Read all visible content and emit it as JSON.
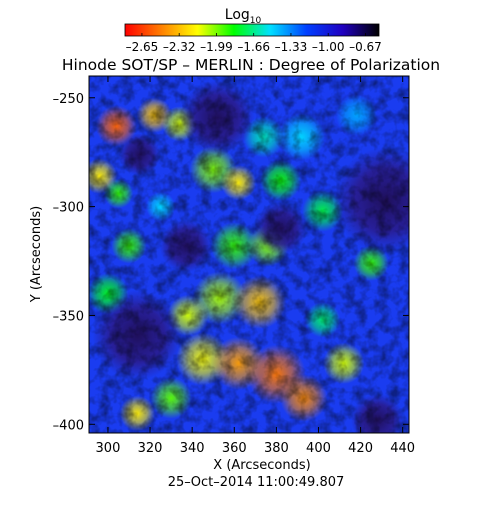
{
  "chart_data": {
    "type": "heatmap",
    "title": "Hinode SOT/SP – MERLIN : Degree of Polarization",
    "xlabel": "X (Arcseconds)",
    "ylabel": "Y (Arcseconds)",
    "footer": "25–Oct–2014 11:00:49.807",
    "xlim": [
      291,
      443
    ],
    "ylim": [
      -404,
      -240
    ],
    "x_ticks": [
      300,
      320,
      340,
      360,
      380,
      400,
      420,
      440
    ],
    "x_tick_labels": [
      "300",
      "320",
      "340",
      "360",
      "380",
      "400",
      "420",
      "440"
    ],
    "y_ticks": [
      -250,
      -300,
      -350,
      -400
    ],
    "y_tick_labels": [
      "–250",
      "–300",
      "–350",
      "–400"
    ],
    "grid": false,
    "colorbar": {
      "title_main": "Log",
      "title_sub": "10",
      "range": [
        -2.8,
        -0.55
      ],
      "ticks": [
        -2.65,
        -2.32,
        -1.99,
        -1.66,
        -1.33,
        -1.0,
        -0.67
      ],
      "tick_labels": [
        "–2.65",
        "–2.32",
        "–1.99",
        "–1.66",
        "–1.33",
        "–1.00",
        "–0.67"
      ],
      "colormap": [
        "#ff0000",
        "#ff7f00",
        "#ffff00",
        "#00ff00",
        "#00e0ff",
        "#0040ff",
        "#2000c0",
        "#000000"
      ]
    },
    "blobs": [
      {
        "x": 304,
        "y": -263,
        "r": 7,
        "v": -2.55
      },
      {
        "x": 322,
        "y": -258,
        "r": 6,
        "v": -2.3
      },
      {
        "x": 334,
        "y": -262,
        "r": 6,
        "v": -2.1
      },
      {
        "x": 350,
        "y": -283,
        "r": 8,
        "v": -2.0
      },
      {
        "x": 362,
        "y": -289,
        "r": 6,
        "v": -2.2
      },
      {
        "x": 374,
        "y": -268,
        "r": 7,
        "v": -1.6
      },
      {
        "x": 392,
        "y": -268,
        "r": 8,
        "v": -1.5
      },
      {
        "x": 382,
        "y": -288,
        "r": 7,
        "v": -1.85
      },
      {
        "x": 402,
        "y": -302,
        "r": 7,
        "v": -1.75
      },
      {
        "x": 360,
        "y": -318,
        "r": 8,
        "v": -1.9
      },
      {
        "x": 376,
        "y": -318,
        "r": 7,
        "v": -2.0
      },
      {
        "x": 310,
        "y": -318,
        "r": 6,
        "v": -1.9
      },
      {
        "x": 296,
        "y": -286,
        "r": 6,
        "v": -2.2
      },
      {
        "x": 353,
        "y": -342,
        "r": 9,
        "v": -2.05
      },
      {
        "x": 372,
        "y": -344,
        "r": 9,
        "v": -2.3
      },
      {
        "x": 338,
        "y": -350,
        "r": 7,
        "v": -2.1
      },
      {
        "x": 345,
        "y": -370,
        "r": 9,
        "v": -2.15
      },
      {
        "x": 362,
        "y": -372,
        "r": 9,
        "v": -2.4
      },
      {
        "x": 380,
        "y": -377,
        "r": 10,
        "v": -2.5
      },
      {
        "x": 393,
        "y": -388,
        "r": 8,
        "v": -2.45
      },
      {
        "x": 412,
        "y": -372,
        "r": 7,
        "v": -2.1
      },
      {
        "x": 330,
        "y": -388,
        "r": 7,
        "v": -1.95
      },
      {
        "x": 314,
        "y": -395,
        "r": 6,
        "v": -2.2
      },
      {
        "x": 402,
        "y": -352,
        "r": 6,
        "v": -1.7
      },
      {
        "x": 425,
        "y": -326,
        "r": 6,
        "v": -1.9
      },
      {
        "x": 418,
        "y": -258,
        "r": 7,
        "v": -1.4
      },
      {
        "x": 300,
        "y": -340,
        "r": 7,
        "v": -1.8
      },
      {
        "x": 305,
        "y": -294,
        "r": 5,
        "v": -1.9
      },
      {
        "x": 325,
        "y": -300,
        "r": 5,
        "v": -1.5
      }
    ],
    "dark_regions": [
      {
        "x": 352,
        "y": -259,
        "r": 14
      },
      {
        "x": 432,
        "y": -297,
        "r": 20
      },
      {
        "x": 314,
        "y": -359,
        "r": 17
      },
      {
        "x": 337,
        "y": -318,
        "r": 10
      },
      {
        "x": 315,
        "y": -276,
        "r": 8
      },
      {
        "x": 382,
        "y": -310,
        "r": 10
      },
      {
        "x": 428,
        "y": -398,
        "r": 10
      }
    ]
  }
}
